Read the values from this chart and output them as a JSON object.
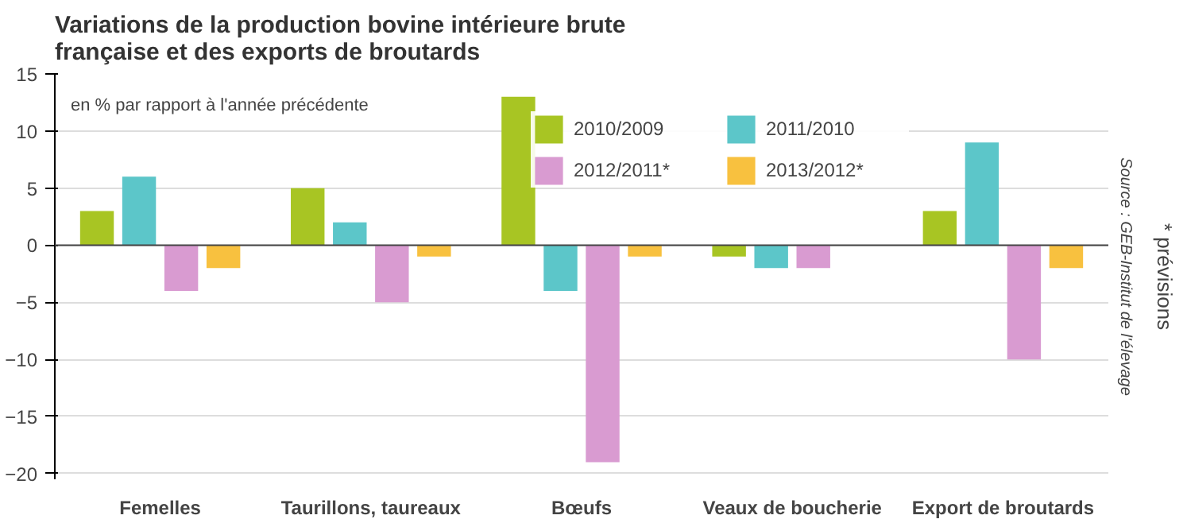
{
  "chart_data": {
    "type": "bar",
    "title": "Variations de la production bovine intérieure brute française et des exports de broutards",
    "categories": [
      "Femelles",
      "Taurillons, taureaux",
      "Bœufs",
      "Veaux de boucherie",
      "Export de broutards"
    ],
    "series": [
      {
        "name": "2010/2009",
        "color": "#a8c523",
        "values": [
          3,
          5,
          13,
          -1,
          3
        ]
      },
      {
        "name": "2011/2010",
        "color": "#5cc6c9",
        "values": [
          6,
          2,
          -4,
          -2,
          9
        ]
      },
      {
        "name": "2012/2011*",
        "color": "#d99bd1",
        "values": [
          -4,
          -5,
          -19,
          -2,
          -10
        ]
      },
      {
        "name": "2013/2012*",
        "color": "#f8c13f",
        "values": [
          -2,
          -1,
          -1,
          0,
          -2
        ]
      }
    ],
    "ylim": [
      -20.5,
      15
    ],
    "yticks": [
      -20,
      -15,
      -10,
      -5,
      0,
      5,
      10,
      15
    ],
    "grid": "y",
    "legend": "top",
    "annotations": [
      "en % par rapport à l'année précédente",
      "Source : GEB-Institut de l'élevage",
      "* prévisions"
    ]
  }
}
